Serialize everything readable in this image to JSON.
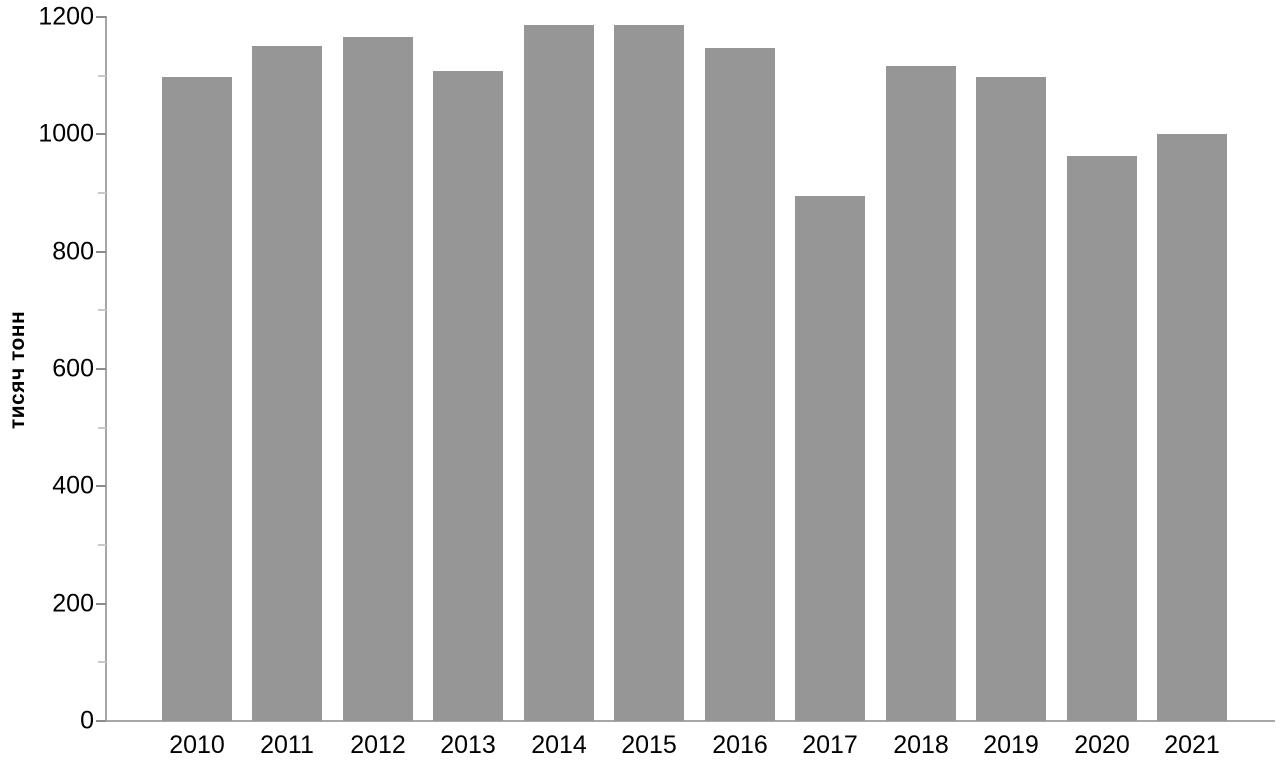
{
  "chart_data": {
    "type": "bar",
    "title": "",
    "categories": [
      "2010",
      "2011",
      "2012",
      "2013",
      "2014",
      "2015",
      "2016",
      "2017",
      "2018",
      "2019",
      "2020",
      "2021"
    ],
    "values": [
      1097,
      1150,
      1166,
      1108,
      1187,
      1186,
      1148,
      895,
      1117,
      1098,
      963,
      1000
    ],
    "xlabel": "",
    "ylabel": "тисяч тонн",
    "ylim": [
      0,
      1200
    ],
    "ytick_major_step": 200,
    "ytick_minor_step": 100,
    "ytick_labels": [
      "0",
      "200",
      "400",
      "600",
      "800",
      "1000",
      "1200"
    ],
    "legend": "none",
    "grid": "off",
    "bar_color": "#969696",
    "axis_color": "#a6a6a6",
    "text_color": "#000000"
  }
}
